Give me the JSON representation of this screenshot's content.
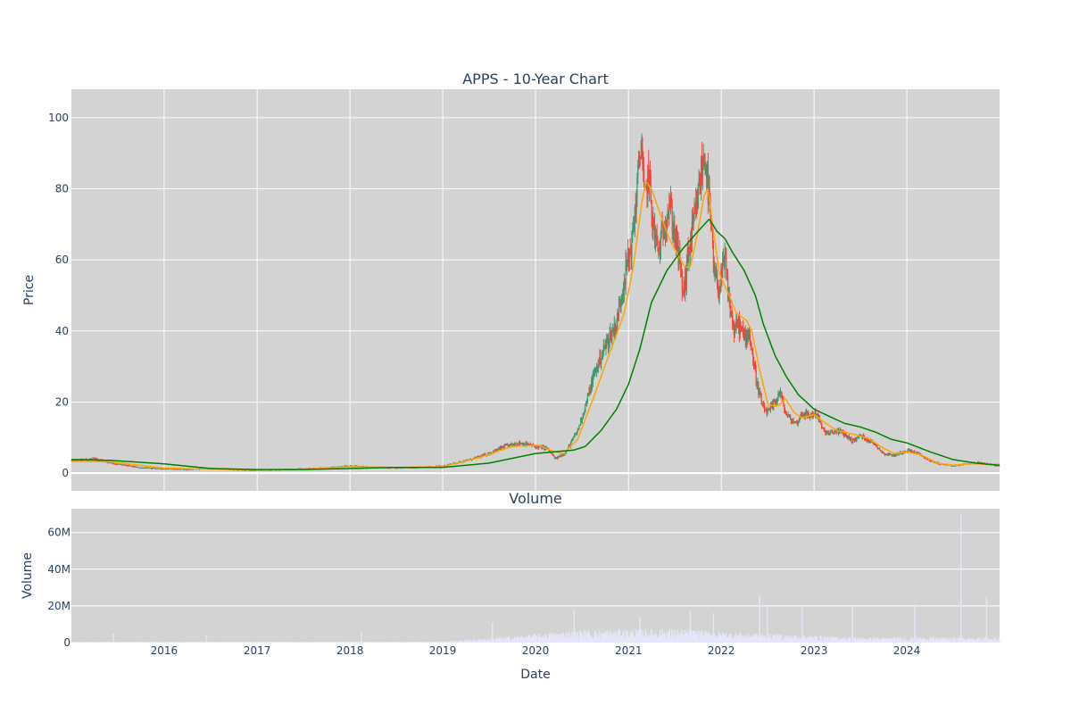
{
  "chart_data": [
    {
      "type": "line",
      "subtype": "candlestick",
      "title": "APPS - 10-Year Chart",
      "xlabel": "",
      "ylabel": "Price",
      "xlim": [
        "2015-01-01",
        "2024-12-31"
      ],
      "ylim": [
        -5,
        108
      ],
      "y_ticks": [
        0,
        20,
        40,
        60,
        80,
        100
      ],
      "x_tick_labels": [
        "2016",
        "2017",
        "2018",
        "2019",
        "2020",
        "2021",
        "2022",
        "2023",
        "2024"
      ],
      "grid": true,
      "candle_up_color": "#3d9970",
      "candle_down_color": "#ff4136",
      "price_points": [
        [
          "2015-01-01",
          3.5
        ],
        [
          "2015-04-01",
          4.0
        ],
        [
          "2015-07-01",
          2.5
        ],
        [
          "2015-10-01",
          1.5
        ],
        [
          "2016-01-01",
          1.2
        ],
        [
          "2016-04-01",
          1.0
        ],
        [
          "2016-07-01",
          1.3
        ],
        [
          "2016-10-01",
          0.9
        ],
        [
          "2017-01-01",
          0.8
        ],
        [
          "2017-04-01",
          1.0
        ],
        [
          "2017-07-01",
          1.2
        ],
        [
          "2017-10-01",
          1.5
        ],
        [
          "2018-01-01",
          2.0
        ],
        [
          "2018-04-01",
          1.7
        ],
        [
          "2018-07-01",
          1.5
        ],
        [
          "2018-10-01",
          1.6
        ],
        [
          "2019-01-01",
          2.0
        ],
        [
          "2019-03-01",
          3.0
        ],
        [
          "2019-05-01",
          4.0
        ],
        [
          "2019-07-01",
          5.5
        ],
        [
          "2019-09-01",
          7.5
        ],
        [
          "2019-11-01",
          8.5
        ],
        [
          "2020-01-01",
          7.5
        ],
        [
          "2020-02-15",
          7.0
        ],
        [
          "2020-03-20",
          4.0
        ],
        [
          "2020-05-01",
          6.0
        ],
        [
          "2020-06-15",
          12.0
        ],
        [
          "2020-07-20",
          20.0
        ],
        [
          "2020-08-15",
          27.0
        ],
        [
          "2020-09-15",
          33.0
        ],
        [
          "2020-10-15",
          38.0
        ],
        [
          "2020-11-15",
          42.0
        ],
        [
          "2020-12-15",
          55.0
        ],
        [
          "2021-01-15",
          65.0
        ],
        [
          "2021-02-10",
          85.0
        ],
        [
          "2021-02-20",
          95.0
        ],
        [
          "2021-03-05",
          75.0
        ],
        [
          "2021-03-20",
          85.0
        ],
        [
          "2021-04-10",
          68.0
        ],
        [
          "2021-05-01",
          62.0
        ],
        [
          "2021-05-20",
          70.0
        ],
        [
          "2021-06-10",
          76.0
        ],
        [
          "2021-06-25",
          70.0
        ],
        [
          "2021-07-15",
          62.0
        ],
        [
          "2021-08-05",
          50.0
        ],
        [
          "2021-08-25",
          62.0
        ],
        [
          "2021-09-20",
          72.0
        ],
        [
          "2021-10-15",
          85.0
        ],
        [
          "2021-10-30",
          90.0
        ],
        [
          "2021-11-15",
          75.0
        ],
        [
          "2021-12-05",
          55.0
        ],
        [
          "2021-12-25",
          52.0
        ],
        [
          "2022-01-15",
          60.0
        ],
        [
          "2022-02-01",
          48.0
        ],
        [
          "2022-02-20",
          40.0
        ],
        [
          "2022-03-10",
          42.0
        ],
        [
          "2022-04-01",
          38.0
        ],
        [
          "2022-04-20",
          40.0
        ],
        [
          "2022-05-10",
          30.0
        ],
        [
          "2022-05-25",
          24.0
        ],
        [
          "2022-06-15",
          18.0
        ],
        [
          "2022-07-05",
          17.0
        ],
        [
          "2022-08-01",
          20.0
        ],
        [
          "2022-08-20",
          23.0
        ],
        [
          "2022-09-10",
          17.0
        ],
        [
          "2022-10-01",
          15.0
        ],
        [
          "2022-10-25",
          14.0
        ],
        [
          "2022-11-15",
          17.0
        ],
        [
          "2022-12-10",
          16.0
        ],
        [
          "2023-01-10",
          17.0
        ],
        [
          "2023-02-05",
          12.0
        ],
        [
          "2023-03-01",
          11.0
        ],
        [
          "2023-04-01",
          12.0
        ],
        [
          "2023-05-01",
          11.0
        ],
        [
          "2023-06-01",
          9.0
        ],
        [
          "2023-07-01",
          10.5
        ],
        [
          "2023-08-01",
          9.5
        ],
        [
          "2023-09-01",
          8.0
        ],
        [
          "2023-10-01",
          5.5
        ],
        [
          "2023-11-15",
          5.0
        ],
        [
          "2024-01-01",
          6.5
        ],
        [
          "2024-02-15",
          5.5
        ],
        [
          "2024-04-01",
          3.5
        ],
        [
          "2024-05-15",
          2.5
        ],
        [
          "2024-07-01",
          2.0
        ],
        [
          "2024-08-15",
          2.5
        ],
        [
          "2024-10-01",
          3.0
        ],
        [
          "2024-11-15",
          2.5
        ],
        [
          "2024-12-31",
          2.0
        ]
      ],
      "series": [
        {
          "type": "line",
          "color": "#ffa500",
          "values": [
            [
              "2015-01-01",
              3.3
            ],
            [
              "2015-06-01",
              3.2
            ],
            [
              "2016-01-01",
              1.4
            ],
            [
              "2016-07-01",
              1.1
            ],
            [
              "2017-01-01",
              0.9
            ],
            [
              "2017-07-01",
              1.1
            ],
            [
              "2018-01-01",
              1.8
            ],
            [
              "2018-07-01",
              1.6
            ],
            [
              "2019-01-01",
              1.8
            ],
            [
              "2019-06-01",
              4.5
            ],
            [
              "2019-10-01",
              7.5
            ],
            [
              "2020-01-15",
              7.8
            ],
            [
              "2020-03-15",
              6.0
            ],
            [
              "2020-04-20",
              5.5
            ],
            [
              "2020-06-15",
              9.5
            ],
            [
              "2020-08-15",
              21.0
            ],
            [
              "2020-10-15",
              33.0
            ],
            [
              "2020-12-15",
              45.0
            ],
            [
              "2021-01-20",
              58.0
            ],
            [
              "2021-02-20",
              75.0
            ],
            [
              "2021-03-10",
              82.0
            ],
            [
              "2021-04-01",
              80.0
            ],
            [
              "2021-05-10",
              72.0
            ],
            [
              "2021-06-10",
              66.0
            ],
            [
              "2021-07-10",
              62.0
            ],
            [
              "2021-08-10",
              58.0
            ],
            [
              "2021-09-01",
              58.0
            ],
            [
              "2021-10-01",
              68.0
            ],
            [
              "2021-10-25",
              78.0
            ],
            [
              "2021-11-10",
              80.0
            ],
            [
              "2021-12-01",
              68.0
            ],
            [
              "2021-12-25",
              56.0
            ],
            [
              "2022-02-01",
              50.0
            ],
            [
              "2022-03-01",
              45.0
            ],
            [
              "2022-04-10",
              43.0
            ],
            [
              "2022-05-01",
              40.0
            ],
            [
              "2022-06-01",
              29.0
            ],
            [
              "2022-07-05",
              19.0
            ],
            [
              "2022-08-15",
              19.0
            ],
            [
              "2022-09-10",
              21.0
            ],
            [
              "2022-10-15",
              17.0
            ],
            [
              "2022-11-15",
              15.5
            ],
            [
              "2023-01-01",
              16.5
            ],
            [
              "2023-02-15",
              14.0
            ],
            [
              "2023-04-01",
              12.0
            ],
            [
              "2023-06-01",
              11.0
            ],
            [
              "2023-08-01",
              9.8
            ],
            [
              "2023-10-01",
              7.0
            ],
            [
              "2023-11-15",
              5.5
            ],
            [
              "2024-01-01",
              6.0
            ],
            [
              "2024-03-01",
              5.0
            ],
            [
              "2024-05-01",
              2.8
            ],
            [
              "2024-07-01",
              2.2
            ],
            [
              "2024-09-01",
              2.6
            ],
            [
              "2024-12-31",
              2.5
            ]
          ]
        },
        {
          "type": "line",
          "color": "#008000",
          "values": [
            [
              "2015-01-01",
              3.8
            ],
            [
              "2015-06-01",
              3.6
            ],
            [
              "2016-01-01",
              2.6
            ],
            [
              "2016-07-01",
              1.3
            ],
            [
              "2017-01-01",
              1.0
            ],
            [
              "2017-07-01",
              1.0
            ],
            [
              "2018-01-01",
              1.3
            ],
            [
              "2018-07-01",
              1.6
            ],
            [
              "2019-01-01",
              1.6
            ],
            [
              "2019-07-01",
              2.8
            ],
            [
              "2020-01-01",
              5.5
            ],
            [
              "2020-06-01",
              6.5
            ],
            [
              "2020-07-15",
              7.5
            ],
            [
              "2020-09-15",
              12.0
            ],
            [
              "2020-11-15",
              18.0
            ],
            [
              "2021-01-01",
              25.0
            ],
            [
              "2021-02-15",
              35.0
            ],
            [
              "2021-04-01",
              48.0
            ],
            [
              "2021-06-01",
              57.0
            ],
            [
              "2021-08-01",
              63.0
            ],
            [
              "2021-10-01",
              68.0
            ],
            [
              "2021-11-15",
              71.5
            ],
            [
              "2021-12-15",
              68.0
            ],
            [
              "2022-01-15",
              66.0
            ],
            [
              "2022-02-15",
              62.0
            ],
            [
              "2022-04-01",
              57.0
            ],
            [
              "2022-05-15",
              50.0
            ],
            [
              "2022-06-15",
              42.0
            ],
            [
              "2022-08-01",
              33.0
            ],
            [
              "2022-09-15",
              27.0
            ],
            [
              "2022-11-01",
              22.0
            ],
            [
              "2023-01-01",
              18.0
            ],
            [
              "2023-03-01",
              16.0
            ],
            [
              "2023-05-01",
              14.0
            ],
            [
              "2023-07-01",
              13.0
            ],
            [
              "2023-09-01",
              11.5
            ],
            [
              "2023-11-01",
              9.5
            ],
            [
              "2024-01-01",
              8.5
            ],
            [
              "2024-04-01",
              6.0
            ],
            [
              "2024-07-01",
              3.8
            ],
            [
              "2024-10-01",
              2.8
            ],
            [
              "2024-12-31",
              2.2
            ]
          ]
        }
      ]
    },
    {
      "type": "bar",
      "title": "Volume",
      "xlabel": "Date",
      "ylabel": "Volume",
      "ylim": [
        0,
        73000000
      ],
      "y_ticks": [
        0,
        20000000,
        40000000,
        60000000
      ],
      "y_tick_labels": [
        "0",
        "20M",
        "40M",
        "60M"
      ],
      "x_tick_labels": [
        "2016",
        "2017",
        "2018",
        "2019",
        "2020",
        "2021",
        "2022",
        "2023",
        "2024"
      ],
      "bar_color": "#e6e6fa",
      "baseline_levels": [
        [
          "2015-01-01",
          0.3
        ],
        [
          "2018-12-01",
          0.4
        ],
        [
          "2019-06-01",
          1.2
        ],
        [
          "2020-06-01",
          4.0
        ],
        [
          "2021-06-01",
          4.5
        ],
        [
          "2022-06-01",
          3.0
        ],
        [
          "2023-06-01",
          1.8
        ],
        [
          "2024-12-31",
          1.6
        ]
      ],
      "spikes": [
        [
          "2015-06-15",
          5
        ],
        [
          "2016-06-15",
          4
        ],
        [
          "2018-02-15",
          6
        ],
        [
          "2019-07-15",
          11
        ],
        [
          "2020-06-01",
          18
        ],
        [
          "2021-02-15",
          14
        ],
        [
          "2021-09-01",
          17
        ],
        [
          "2021-12-01",
          16
        ],
        [
          "2022-06-01",
          26
        ],
        [
          "2022-07-01",
          20
        ],
        [
          "2022-11-15",
          20
        ],
        [
          "2023-06-01",
          19
        ],
        [
          "2024-02-01",
          21
        ],
        [
          "2024-08-01",
          70
        ],
        [
          "2024-11-10",
          25
        ]
      ]
    }
  ]
}
